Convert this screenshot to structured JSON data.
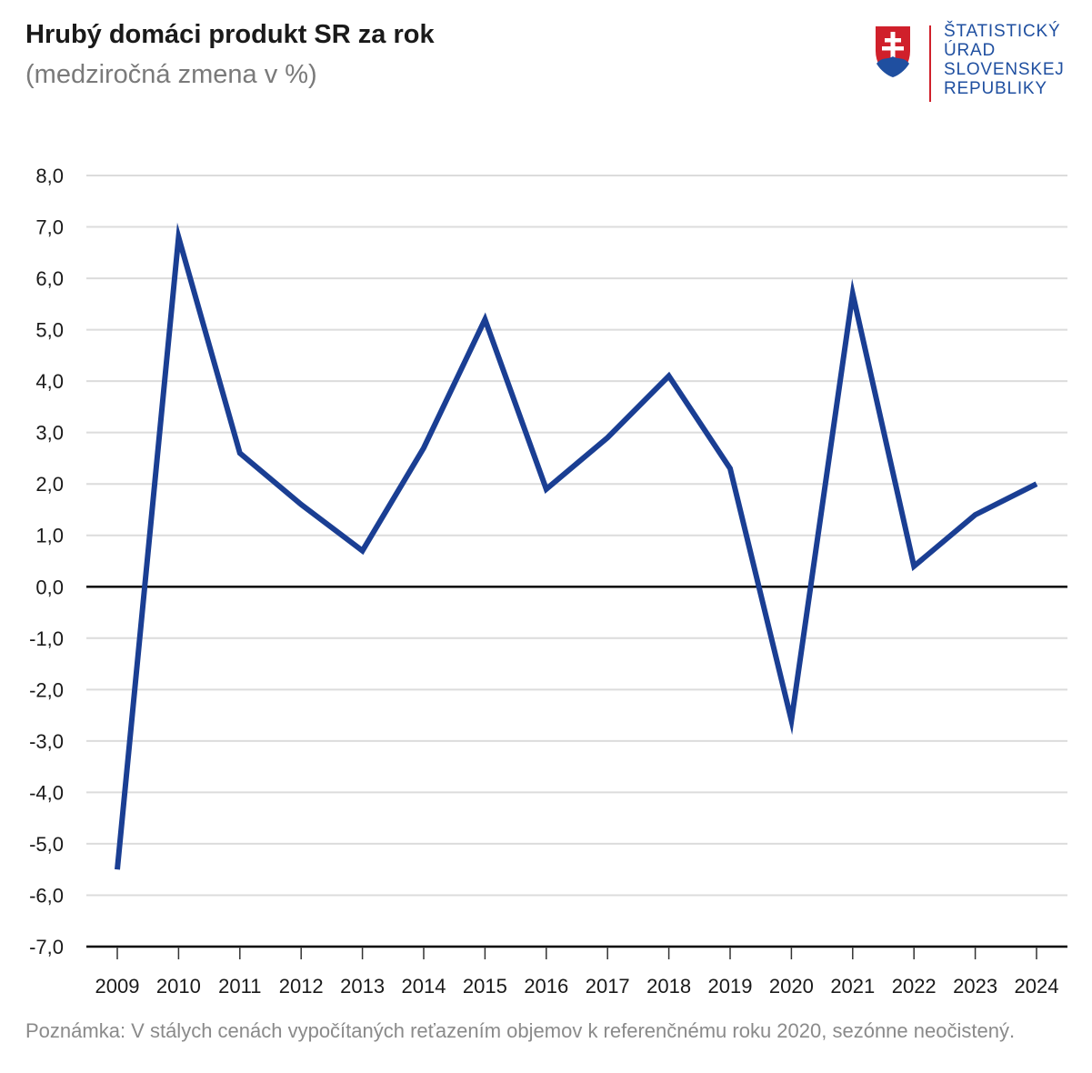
{
  "header": {
    "title": "Hrubý domáci produkt SR za rok",
    "subtitle": "(medziročná zmena v %)"
  },
  "logo": {
    "lines": [
      "ŠTATISTICKÝ",
      "ÚRAD",
      "SLOVENSKEJ",
      "REPUBLIKY"
    ],
    "color": "#1f4fa0",
    "accent": "#d0202b"
  },
  "note": "Poznámka: V stálych cenách vypočítaných reťazením objemov k referenčnému roku 2020, sezónne neočistený.",
  "chart_data": {
    "type": "line",
    "title": "Hrubý domáci produkt SR za rok",
    "subtitle": "(medziročná zmena v %)",
    "x": [
      "2009",
      "2010",
      "2011",
      "2012",
      "2013",
      "2014",
      "2015",
      "2016",
      "2017",
      "2018",
      "2019",
      "2020",
      "2021",
      "2022",
      "2023",
      "2024"
    ],
    "series": [
      {
        "values": [
          -5.5,
          6.8,
          2.6,
          1.6,
          0.7,
          2.7,
          5.2,
          1.9,
          2.9,
          4.1,
          2.3,
          -2.6,
          5.7,
          0.4,
          1.4,
          2.0
        ],
        "color": "#1a3e93"
      }
    ],
    "ylim": [
      -7,
      8
    ],
    "yticks": [
      "8,0",
      "7,0",
      "6,0",
      "5,0",
      "4,0",
      "3,0",
      "2,0",
      "1,0",
      "0,0",
      "-1,0",
      "-2,0",
      "-3,0",
      "-4,0",
      "-5,0",
      "-6,0",
      "-7,0"
    ],
    "ytick_values": [
      8,
      7,
      6,
      5,
      4,
      3,
      2,
      1,
      0,
      -1,
      -2,
      -3,
      -4,
      -5,
      -6,
      -7
    ],
    "grid": true,
    "xlabel": "",
    "ylabel": ""
  }
}
